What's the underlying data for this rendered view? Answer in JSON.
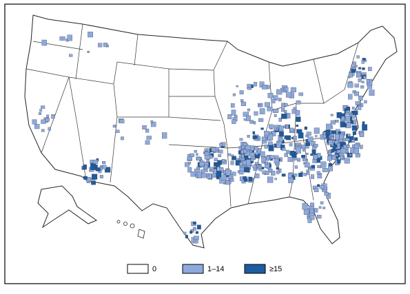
{
  "legend": {
    "items": [
      {
        "label": "0",
        "color": "#ffffff"
      },
      {
        "label": "1–14",
        "color": "#8eaadc"
      },
      {
        "label": "≥15",
        "color": "#1d5c9e"
      }
    ]
  }
}
